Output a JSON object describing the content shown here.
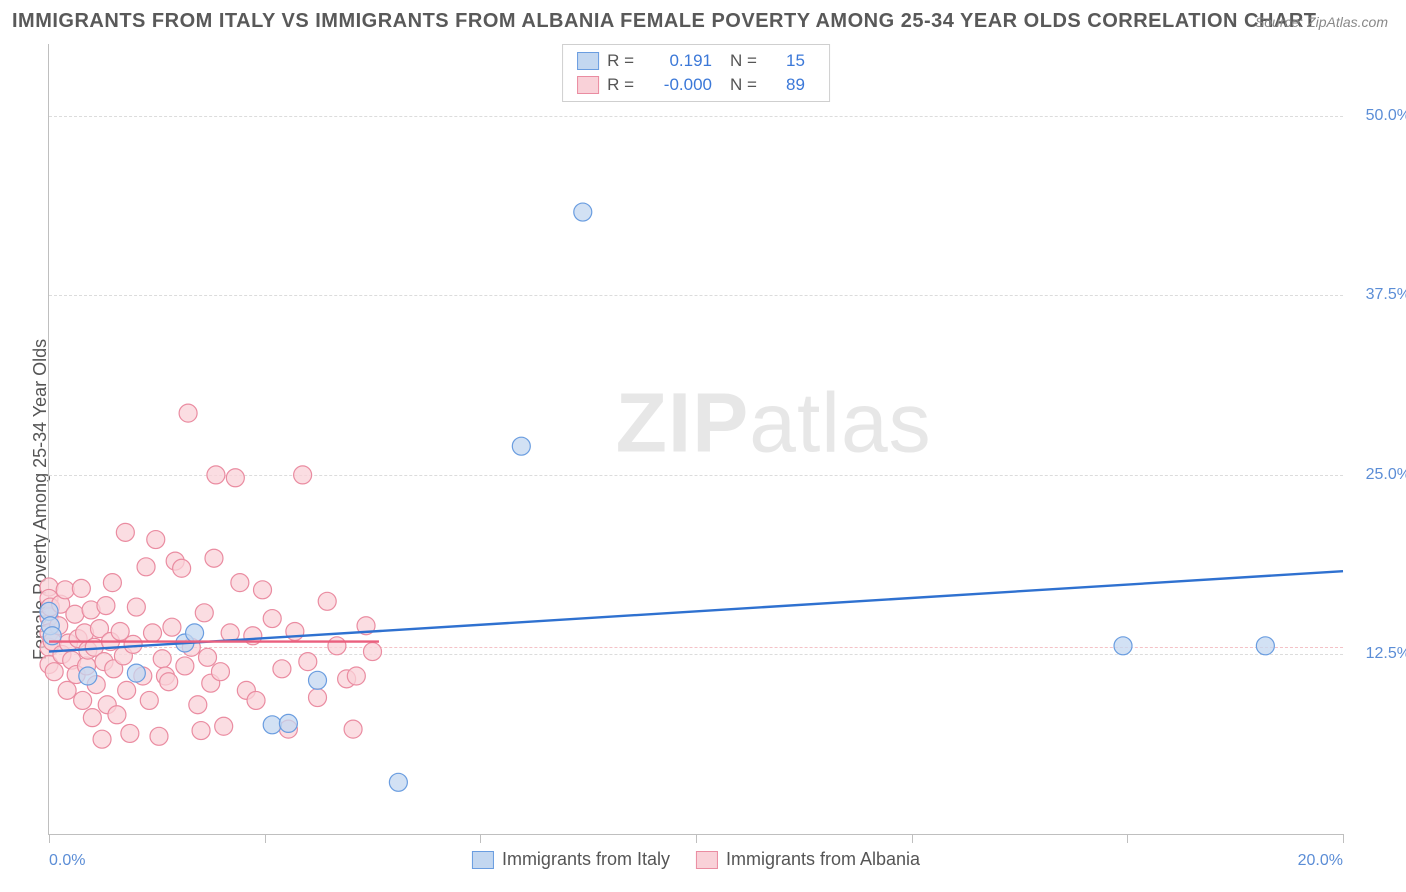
{
  "title": "IMMIGRANTS FROM ITALY VS IMMIGRANTS FROM ALBANIA FEMALE POVERTY AMONG 25-34 YEAR OLDS CORRELATION CHART",
  "source_label": "Source: ZipAtlas.com",
  "y_axis_title": "Female Poverty Among 25-34 Year Olds",
  "watermark_bold": "ZIP",
  "watermark_light": "atlas",
  "chart": {
    "type": "scatter",
    "xlim": [
      0,
      20
    ],
    "ylim": [
      0,
      55
    ],
    "x_ticks": [
      0,
      3.333,
      6.667,
      10,
      13.333,
      16.667,
      20
    ],
    "x_tick_labels": {
      "0": "0.0%",
      "20": "20.0%"
    },
    "y_grid": [
      12.5,
      25.0,
      37.5,
      50.0
    ],
    "y_tick_labels": [
      "12.5%",
      "25.0%",
      "37.5%",
      "50.0%"
    ],
    "ref_line_y": 13.0,
    "background_color": "#ffffff",
    "grid_color": "#dcdcdc",
    "axis_color": "#bfbfbf",
    "marker_radius": 9,
    "marker_stroke_width": 1.2,
    "trend_line_width": 2.4,
    "series": [
      {
        "name": "Immigrants from Italy",
        "fill": "#c3d7f0",
        "stroke": "#6a9de0",
        "line_color": "#2f71d0",
        "r_label": "0.191",
        "n_label": "15",
        "trend": {
          "y_at_x0": 12.7,
          "y_at_x20": 18.3
        },
        "points": [
          [
            0.0,
            15.5
          ],
          [
            0.02,
            14.5
          ],
          [
            0.05,
            13.8
          ],
          [
            0.6,
            11.0
          ],
          [
            1.35,
            11.2
          ],
          [
            2.1,
            13.3
          ],
          [
            2.25,
            14.0
          ],
          [
            3.45,
            7.6
          ],
          [
            3.7,
            7.7
          ],
          [
            4.15,
            10.7
          ],
          [
            5.4,
            3.6
          ],
          [
            7.3,
            27.0
          ],
          [
            8.25,
            43.3
          ],
          [
            16.6,
            13.1
          ],
          [
            18.8,
            13.1
          ]
        ]
      },
      {
        "name": "Immigrants from Albania",
        "fill": "#f9d1d8",
        "stroke": "#ea8ca1",
        "line_color": "#ea5f7e",
        "r_label": "-0.000",
        "n_label": "89",
        "trend": {
          "x0": 0,
          "x1": 5.1,
          "y": 13.4
        },
        "points": [
          [
            0.0,
            17.2
          ],
          [
            0.0,
            16.4
          ],
          [
            0.0,
            15.1
          ],
          [
            0.0,
            14.0
          ],
          [
            0.0,
            13.0
          ],
          [
            0.0,
            11.8
          ],
          [
            0.02,
            15.8
          ],
          [
            0.05,
            13.4
          ],
          [
            0.08,
            11.3
          ],
          [
            0.15,
            14.5
          ],
          [
            0.18,
            16.0
          ],
          [
            0.2,
            12.5
          ],
          [
            0.25,
            17.0
          ],
          [
            0.28,
            10.0
          ],
          [
            0.3,
            13.3
          ],
          [
            0.35,
            12.1
          ],
          [
            0.4,
            15.3
          ],
          [
            0.42,
            11.1
          ],
          [
            0.45,
            13.6
          ],
          [
            0.5,
            17.1
          ],
          [
            0.52,
            9.3
          ],
          [
            0.55,
            14.0
          ],
          [
            0.58,
            11.7
          ],
          [
            0.6,
            12.8
          ],
          [
            0.65,
            15.6
          ],
          [
            0.67,
            8.1
          ],
          [
            0.7,
            13.0
          ],
          [
            0.73,
            10.4
          ],
          [
            0.78,
            14.3
          ],
          [
            0.82,
            6.6
          ],
          [
            0.85,
            12.0
          ],
          [
            0.88,
            15.9
          ],
          [
            0.9,
            9.0
          ],
          [
            0.95,
            13.4
          ],
          [
            0.98,
            17.5
          ],
          [
            1.0,
            11.5
          ],
          [
            1.05,
            8.3
          ],
          [
            1.1,
            14.1
          ],
          [
            1.15,
            12.4
          ],
          [
            1.18,
            21.0
          ],
          [
            1.2,
            10.0
          ],
          [
            1.25,
            7.0
          ],
          [
            1.3,
            13.2
          ],
          [
            1.35,
            15.8
          ],
          [
            1.45,
            11.0
          ],
          [
            1.5,
            18.6
          ],
          [
            1.55,
            9.3
          ],
          [
            1.6,
            14.0
          ],
          [
            1.65,
            20.5
          ],
          [
            1.7,
            6.8
          ],
          [
            1.75,
            12.2
          ],
          [
            1.8,
            11.0
          ],
          [
            1.85,
            10.6
          ],
          [
            1.9,
            14.4
          ],
          [
            1.95,
            19.0
          ],
          [
            2.05,
            18.5
          ],
          [
            2.1,
            11.7
          ],
          [
            2.15,
            29.3
          ],
          [
            2.2,
            13.0
          ],
          [
            2.3,
            9.0
          ],
          [
            2.35,
            7.2
          ],
          [
            2.4,
            15.4
          ],
          [
            2.45,
            12.3
          ],
          [
            2.5,
            10.5
          ],
          [
            2.55,
            19.2
          ],
          [
            2.58,
            25.0
          ],
          [
            2.65,
            11.3
          ],
          [
            2.7,
            7.5
          ],
          [
            2.8,
            14.0
          ],
          [
            2.88,
            24.8
          ],
          [
            2.95,
            17.5
          ],
          [
            3.05,
            10.0
          ],
          [
            3.15,
            13.8
          ],
          [
            3.2,
            9.3
          ],
          [
            3.3,
            17.0
          ],
          [
            3.45,
            15.0
          ],
          [
            3.6,
            11.5
          ],
          [
            3.7,
            7.3
          ],
          [
            3.8,
            14.1
          ],
          [
            3.92,
            25.0
          ],
          [
            4.0,
            12.0
          ],
          [
            4.15,
            9.5
          ],
          [
            4.3,
            16.2
          ],
          [
            4.45,
            13.1
          ],
          [
            4.6,
            10.8
          ],
          [
            4.7,
            7.3
          ],
          [
            4.75,
            11.0
          ],
          [
            4.9,
            14.5
          ],
          [
            5.0,
            12.7
          ]
        ]
      }
    ]
  },
  "colors": {
    "title": "#595959",
    "axis_text": "#5b8dd6",
    "label_text": "#555555"
  }
}
